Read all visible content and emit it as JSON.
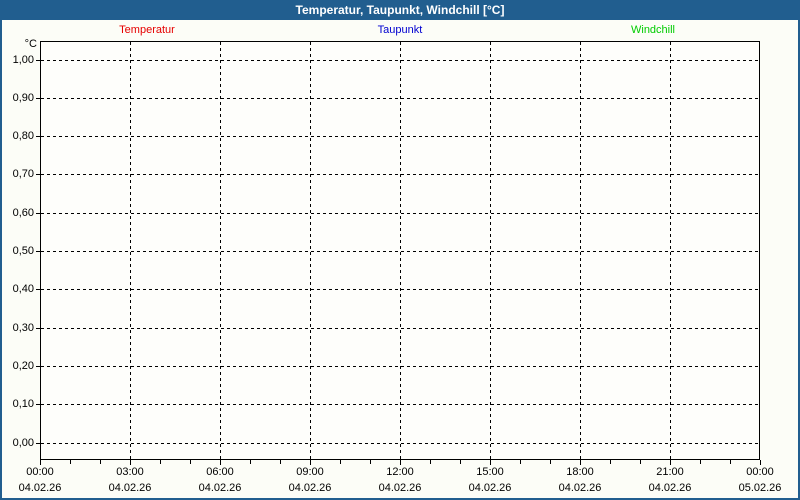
{
  "window": {
    "title": "Temperatur, Taupunkt, Windchill [°C]"
  },
  "colors": {
    "titlebar": "#215e8f",
    "frame": "#215e8f",
    "window_bg": "#fcfdf7",
    "plot_bg": "#fefefb",
    "grid": "#000000",
    "temperatur": "#e60000",
    "taupunkt": "#0000d0",
    "windchill": "#00cc00"
  },
  "legend": {
    "items": [
      {
        "label": "Temperatur",
        "color": "#e60000"
      },
      {
        "label": "Taupunkt",
        "color": "#0000d0"
      },
      {
        "label": "Windchill",
        "color": "#00cc00"
      }
    ]
  },
  "y_axis": {
    "unit": "°C",
    "tick_labels": [
      "1,00",
      "0,90",
      "0,80",
      "0,70",
      "0,60",
      "0,50",
      "0,40",
      "0,30",
      "0,20",
      "0,10",
      "0,00"
    ]
  },
  "x_axis": {
    "ticks": [
      {
        "time": "00:00",
        "date": "04.02.26"
      },
      {
        "time": "03:00",
        "date": "04.02.26"
      },
      {
        "time": "06:00",
        "date": "04.02.26"
      },
      {
        "time": "09:00",
        "date": "04.02.26"
      },
      {
        "time": "12:00",
        "date": "04.02.26"
      },
      {
        "time": "15:00",
        "date": "04.02.26"
      },
      {
        "time": "18:00",
        "date": "04.02.26"
      },
      {
        "time": "21:00",
        "date": "04.02.26"
      },
      {
        "time": "00:00",
        "date": "05.02.26"
      }
    ]
  },
  "chart_data": {
    "type": "line",
    "title": "Temperatur, Taupunkt, Windchill [°C]",
    "ylabel": "°C",
    "ylim": [
      0.0,
      1.0
    ],
    "y_tick_interval": 0.1,
    "y_tick_labels": [
      "1,00",
      "0,90",
      "0,80",
      "0,70",
      "0,60",
      "0,50",
      "0,40",
      "0,30",
      "0,20",
      "0,10",
      "0,00"
    ],
    "x_range": [
      "04.02.26 00:00",
      "05.02.26 00:00"
    ],
    "x_tick_interval_hours": 3,
    "x_tick_labels": [
      "00:00",
      "03:00",
      "06:00",
      "09:00",
      "12:00",
      "15:00",
      "18:00",
      "21:00",
      "00:00"
    ],
    "grid": "dashed",
    "legend_position": "top",
    "series": [
      {
        "name": "Temperatur",
        "color": "#e60000",
        "values": []
      },
      {
        "name": "Taupunkt",
        "color": "#0000d0",
        "values": []
      },
      {
        "name": "Windchill",
        "color": "#00cc00",
        "values": []
      }
    ]
  }
}
